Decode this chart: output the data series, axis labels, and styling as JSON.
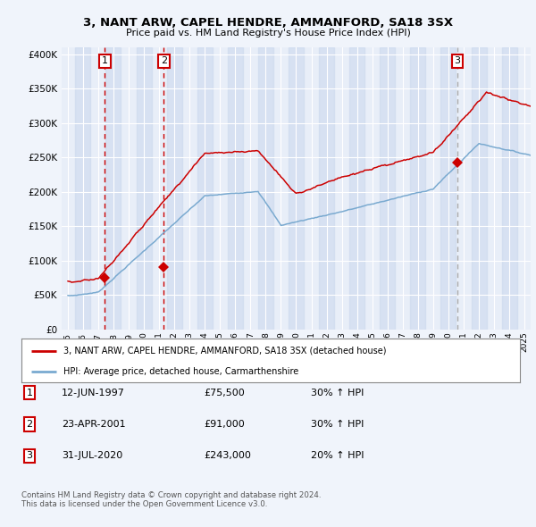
{
  "title": "3, NANT ARW, CAPEL HENDRE, AMMANFORD, SA18 3SX",
  "subtitle": "Price paid vs. HM Land Registry's House Price Index (HPI)",
  "legend_line1": "3, NANT ARW, CAPEL HENDRE, AMMANFORD, SA18 3SX (detached house)",
  "legend_line2": "HPI: Average price, detached house, Carmarthenshire",
  "footer": "Contains HM Land Registry data © Crown copyright and database right 2024.\nThis data is licensed under the Open Government Licence v3.0.",
  "transactions": [
    {
      "num": 1,
      "date": "12-JUN-1997",
      "year": 1997.44,
      "price": 75500,
      "hpi_pct": "30% ↑ HPI"
    },
    {
      "num": 2,
      "date": "23-APR-2001",
      "year": 2001.31,
      "price": 91000,
      "hpi_pct": "30% ↑ HPI"
    },
    {
      "num": 3,
      "date": "31-JUL-2020",
      "year": 2020.58,
      "price": 243000,
      "hpi_pct": "20% ↑ HPI"
    }
  ],
  "background_color": "#f0f4fb",
  "plot_bg_color": "#e8eef8",
  "grid_color": "#ffffff",
  "red_line_color": "#cc0000",
  "blue_line_color": "#7aaad0",
  "marker_color": "#cc0000",
  "box_color": "#cc0000",
  "band_color": "#ccd9ee",
  "ylim": [
    0,
    410000
  ],
  "yticks": [
    0,
    50000,
    100000,
    150000,
    200000,
    250000,
    300000,
    350000,
    400000
  ],
  "xlim_start": 1994.6,
  "xlim_end": 2025.4
}
